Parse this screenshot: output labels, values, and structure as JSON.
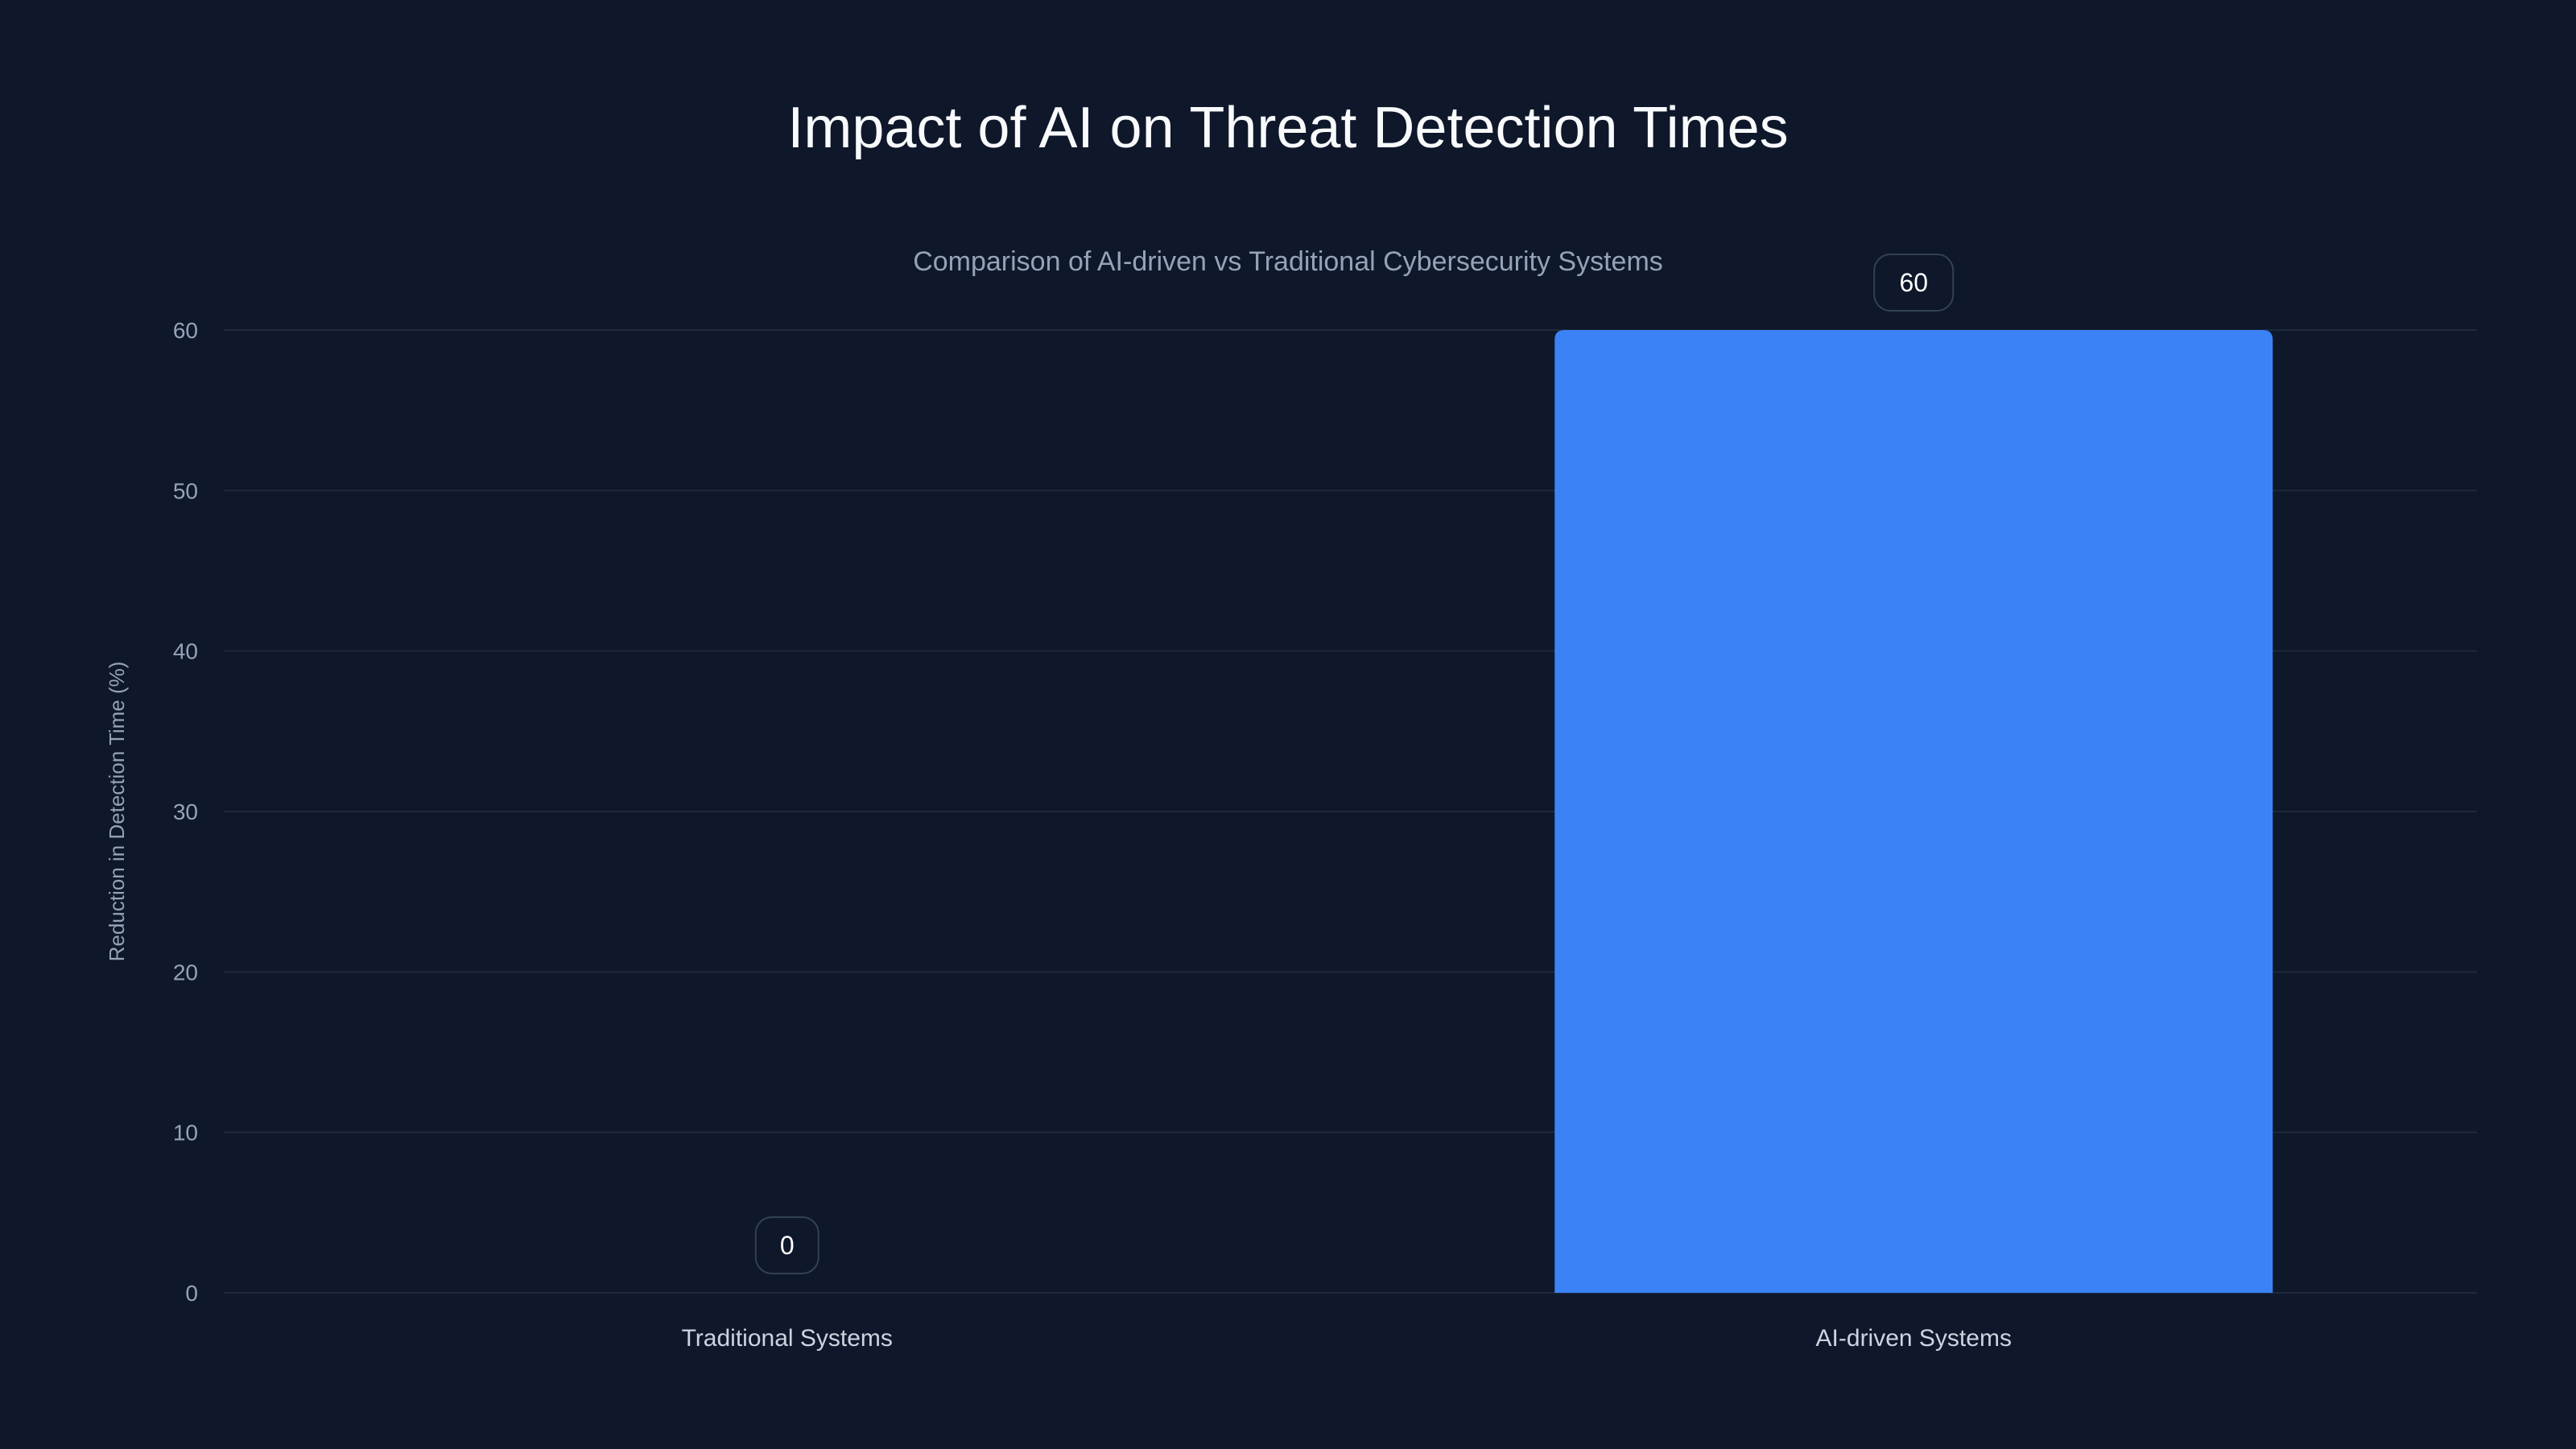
{
  "chart_data": {
    "type": "bar",
    "title": "Impact of AI on Threat Detection Times",
    "subtitle": "Comparison of AI-driven vs Traditional Cybersecurity Systems",
    "categories": [
      "Traditional Systems",
      "AI-driven Systems"
    ],
    "values": [
      0,
      60
    ],
    "xlabel": "",
    "ylabel": "Reduction in Detection Time (%)",
    "ylim": [
      0,
      60
    ],
    "yticks": [
      0,
      10,
      20,
      30,
      40,
      50,
      60
    ],
    "grid": true,
    "legend": "none",
    "colors": {
      "background": "#0f172a",
      "bar": "#3b82f6",
      "grid": "#1e293b",
      "text": "#94a3b8",
      "title": "#f8fafc"
    }
  }
}
